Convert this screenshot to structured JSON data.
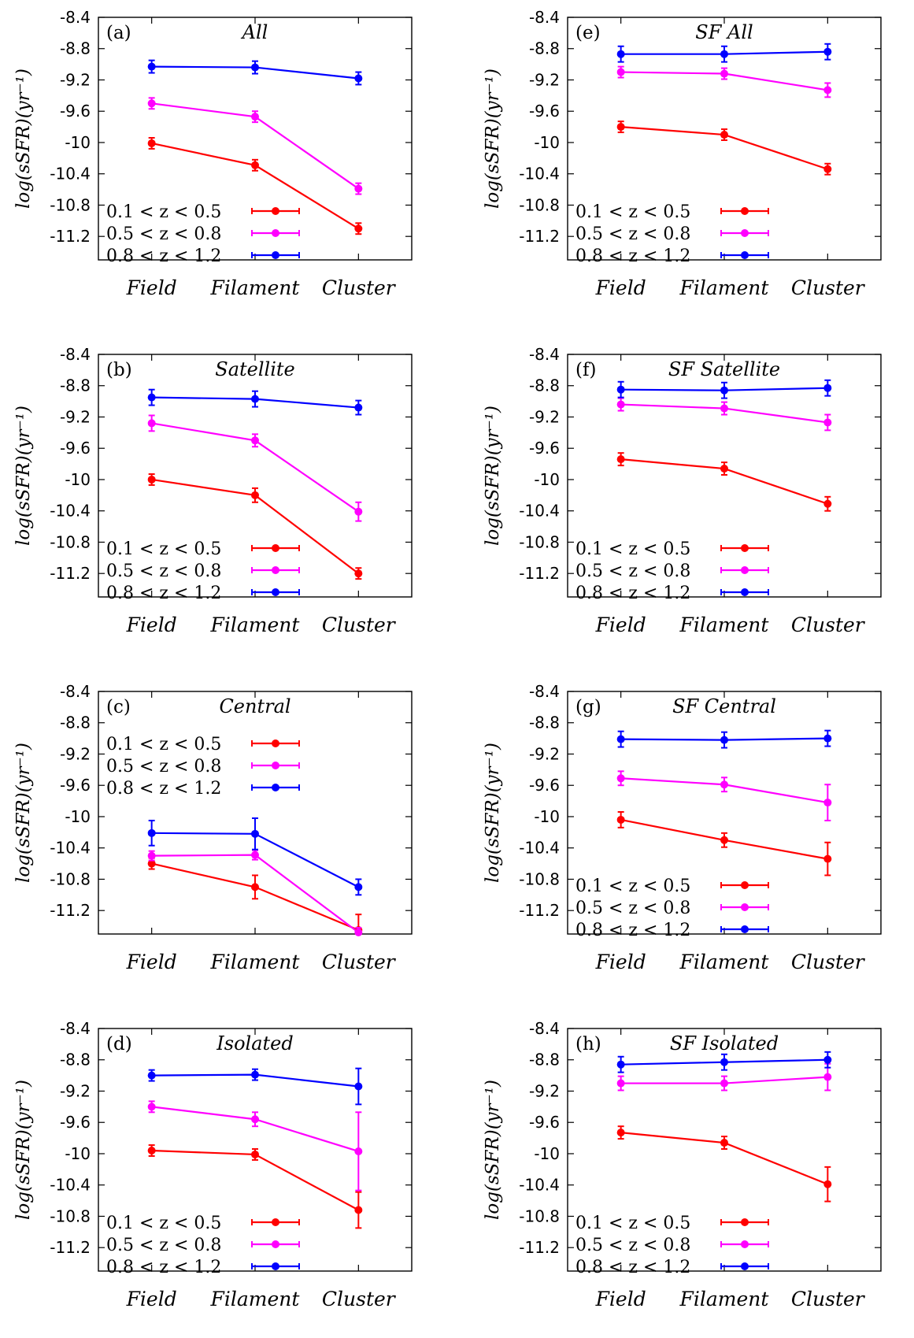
{
  "chart_data": [
    {
      "type": "line",
      "panel": "(a)",
      "title": "All",
      "ylabel": "log(sSFR)(yr⁻¹)",
      "ylim": [
        -11.5,
        -8.4
      ],
      "legend_position": "lower-left",
      "categories": [
        "Field",
        "Filament",
        "Cluster"
      ],
      "series": [
        {
          "name": "0.1 < z < 0.5",
          "values": [
            -10.01,
            -10.29,
            -11.1
          ],
          "errors": [
            0.07,
            0.07,
            0.07
          ]
        },
        {
          "name": "0.5 < z < 0.8",
          "values": [
            -9.5,
            -9.67,
            -10.59
          ],
          "errors": [
            0.07,
            0.07,
            0.07
          ]
        },
        {
          "name": "0.8 < z < 1.2",
          "values": [
            -9.03,
            -9.04,
            -9.18
          ],
          "errors": [
            0.08,
            0.08,
            0.08
          ]
        }
      ]
    },
    {
      "type": "line",
      "panel": "(b)",
      "title": "Satellite",
      "ylabel": "log(sSFR)(yr⁻¹)",
      "ylim": [
        -11.5,
        -8.4
      ],
      "legend_position": "lower-left",
      "categories": [
        "Field",
        "Filament",
        "Cluster"
      ],
      "series": [
        {
          "name": "0.1 < z < 0.5",
          "values": [
            -10.0,
            -10.2,
            -11.2
          ],
          "errors": [
            0.07,
            0.09,
            0.07
          ]
        },
        {
          "name": "0.5 < z < 0.8",
          "values": [
            -9.28,
            -9.5,
            -10.41
          ],
          "errors": [
            0.1,
            0.08,
            0.12
          ]
        },
        {
          "name": "0.8 < z < 1.2",
          "values": [
            -8.95,
            -8.97,
            -9.08
          ],
          "errors": [
            0.1,
            0.1,
            0.09
          ]
        }
      ]
    },
    {
      "type": "line",
      "panel": "(c)",
      "title": "Central",
      "ylabel": "log(sSFR)(yr⁻¹)",
      "ylim": [
        -11.5,
        -8.4
      ],
      "legend_position": "upper-left",
      "categories": [
        "Field",
        "Filament",
        "Cluster"
      ],
      "series": [
        {
          "name": "0.1 < z < 0.5",
          "values": [
            -10.6,
            -10.9,
            -11.45
          ],
          "errors": [
            0.07,
            0.15,
            0.2
          ]
        },
        {
          "name": "0.5 < z < 0.8",
          "values": [
            -10.5,
            -10.49,
            -11.48
          ],
          "errors": [
            0.06,
            0.06,
            0.06
          ]
        },
        {
          "name": "0.8 < z < 1.2",
          "values": [
            -10.21,
            -10.22,
            -10.9
          ],
          "errors": [
            0.16,
            0.2,
            0.1
          ]
        }
      ]
    },
    {
      "type": "line",
      "panel": "(d)",
      "title": "Isolated",
      "ylabel": "log(sSFR)(yr⁻¹)",
      "ylim": [
        -11.5,
        -8.4
      ],
      "legend_position": "lower-left",
      "categories": [
        "Field",
        "Filament",
        "Cluster"
      ],
      "series": [
        {
          "name": "0.1 < z < 0.5",
          "values": [
            -9.96,
            -10.01,
            -10.72
          ],
          "errors": [
            0.07,
            0.07,
            0.23
          ]
        },
        {
          "name": "0.5 < z < 0.8",
          "values": [
            -9.4,
            -9.56,
            -9.97
          ],
          "errors": [
            0.07,
            0.09,
            0.5
          ]
        },
        {
          "name": "0.8 < z < 1.2",
          "values": [
            -9.0,
            -8.99,
            -9.14
          ],
          "errors": [
            0.07,
            0.07,
            0.23
          ]
        }
      ]
    },
    {
      "type": "line",
      "panel": "(e)",
      "title": "SF All",
      "ylabel": "log(sSFR)(yr⁻¹)",
      "ylim": [
        -11.5,
        -8.4
      ],
      "legend_position": "lower-left",
      "categories": [
        "Field",
        "Filament",
        "Cluster"
      ],
      "series": [
        {
          "name": "0.1 < z < 0.5",
          "values": [
            -9.8,
            -9.9,
            -10.34
          ],
          "errors": [
            0.07,
            0.07,
            0.07
          ]
        },
        {
          "name": "0.5 < z < 0.8",
          "values": [
            -9.1,
            -9.12,
            -9.33
          ],
          "errors": [
            0.07,
            0.07,
            0.09
          ]
        },
        {
          "name": "0.8 < z < 1.2",
          "values": [
            -8.87,
            -8.87,
            -8.84
          ],
          "errors": [
            0.1,
            0.1,
            0.1
          ]
        }
      ]
    },
    {
      "type": "line",
      "panel": "(f)",
      "title": "SF Satellite",
      "ylabel": "log(sSFR)(yr⁻¹)",
      "ylim": [
        -11.5,
        -8.4
      ],
      "legend_position": "lower-left",
      "categories": [
        "Field",
        "Filament",
        "Cluster"
      ],
      "series": [
        {
          "name": "0.1 < z < 0.5",
          "values": [
            -9.74,
            -9.86,
            -10.31
          ],
          "errors": [
            0.08,
            0.08,
            0.09
          ]
        },
        {
          "name": "0.5 < z < 0.8",
          "values": [
            -9.04,
            -9.09,
            -9.27
          ],
          "errors": [
            0.08,
            0.08,
            0.1
          ]
        },
        {
          "name": "0.8 < z < 1.2",
          "values": [
            -8.85,
            -8.86,
            -8.83
          ],
          "errors": [
            0.1,
            0.1,
            0.1
          ]
        }
      ]
    },
    {
      "type": "line",
      "panel": "(g)",
      "title": "SF Central",
      "ylabel": "log(sSFR)(yr⁻¹)",
      "ylim": [
        -11.5,
        -8.4
      ],
      "legend_position": "lower-left",
      "categories": [
        "Field",
        "Filament",
        "Cluster"
      ],
      "series": [
        {
          "name": "0.1 < z < 0.5",
          "values": [
            -10.04,
            -10.3,
            -10.54
          ],
          "errors": [
            0.1,
            0.09,
            0.21
          ]
        },
        {
          "name": "0.5 < z < 0.8",
          "values": [
            -9.51,
            -9.59,
            -9.82
          ],
          "errors": [
            0.09,
            0.09,
            0.23
          ]
        },
        {
          "name": "0.8 < z < 1.2",
          "values": [
            -9.01,
            -9.02,
            -9.0
          ],
          "errors": [
            0.1,
            0.1,
            0.1
          ]
        }
      ]
    },
    {
      "type": "line",
      "panel": "(h)",
      "title": "SF Isolated",
      "ylabel": "log(sSFR)(yr⁻¹)",
      "ylim": [
        -11.5,
        -8.4
      ],
      "legend_position": "lower-left",
      "categories": [
        "Field",
        "Filament",
        "Cluster"
      ],
      "series": [
        {
          "name": "0.1 < z < 0.5",
          "values": [
            -9.73,
            -9.86,
            -10.39
          ],
          "errors": [
            0.08,
            0.08,
            0.22
          ]
        },
        {
          "name": "0.5 < z < 0.8",
          "values": [
            -9.1,
            -9.1,
            -9.02
          ],
          "errors": [
            0.09,
            0.09,
            0.17
          ]
        },
        {
          "name": "0.8 < z < 1.2",
          "values": [
            -8.86,
            -8.83,
            -8.8
          ],
          "errors": [
            0.1,
            0.1,
            0.1
          ]
        }
      ]
    }
  ],
  "shared": {
    "yticks": [
      "-8.4",
      "-8.8",
      "-9.2",
      "-9.6",
      "-10",
      "-10.4",
      "-10.8",
      "-11.2"
    ],
    "ytick_values": [
      -8.4,
      -8.8,
      -9.2,
      -9.6,
      -10,
      -10.4,
      -10.8,
      -11.2
    ],
    "series_colors": [
      "#ff0000",
      "#ff00ff",
      "#0000ff"
    ]
  }
}
